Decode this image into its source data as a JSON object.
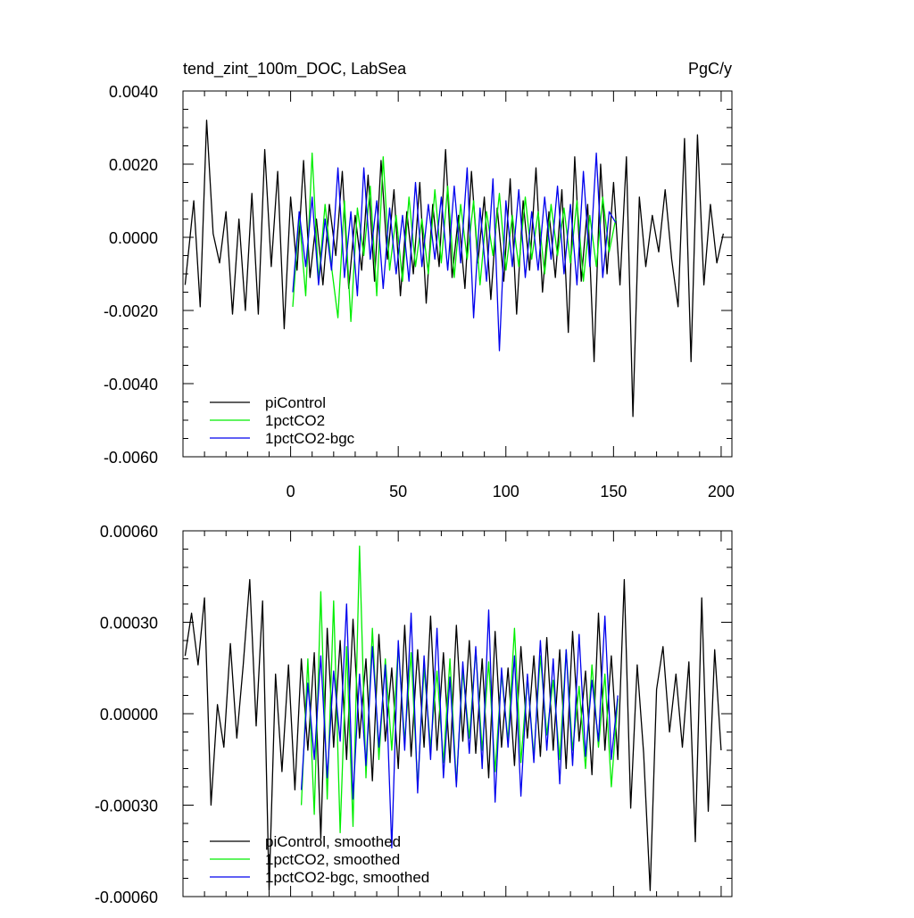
{
  "chart_data": [
    {
      "type": "line",
      "title": "tend_zint_100m_DOC, LabSea",
      "units": "PgC/y",
      "ylim": [
        -0.006,
        0.004
      ],
      "xlim": [
        -50,
        205
      ],
      "yticks": [
        -0.006,
        -0.004,
        -0.002,
        0.0,
        0.002,
        0.004
      ],
      "ytick_labels": [
        "-0.0060",
        "-0.0040",
        "-0.0020",
        "0.0000",
        "0.0020",
        "0.0040"
      ],
      "xticks": [
        0,
        50,
        100,
        150,
        200
      ],
      "xtick_labels": [
        "0",
        "50",
        "100",
        "150",
        "200"
      ],
      "legend_position": "bottom-left",
      "series": [
        {
          "name": "piControl",
          "color": "#000000",
          "x": [
            -49,
            -45,
            -42,
            -39,
            -36,
            -33,
            -30,
            -27,
            -24,
            -21,
            -18,
            -15,
            -12,
            -9,
            -6,
            -3,
            0,
            3,
            6,
            9,
            12,
            15,
            18,
            21,
            24,
            27,
            30,
            33,
            36,
            39,
            42,
            45,
            48,
            51,
            54,
            57,
            60,
            63,
            66,
            69,
            72,
            75,
            78,
            81,
            84,
            87,
            90,
            93,
            96,
            99,
            102,
            105,
            108,
            111,
            114,
            117,
            120,
            123,
            126,
            129,
            132,
            135,
            138,
            141,
            144,
            147,
            150,
            153,
            156,
            159,
            162,
            165,
            168,
            171,
            174,
            177,
            180,
            183,
            186,
            189,
            192,
            195,
            198,
            201
          ],
          "values": [
            -0.0013,
            0.001,
            -0.0019,
            0.0032,
            0.0001,
            -0.0007,
            0.0007,
            -0.0021,
            0.0005,
            -0.002,
            0.0012,
            -0.0021,
            0.0024,
            -0.0008,
            0.0018,
            -0.0025,
            0.0011,
            -0.0009,
            0.0021,
            -0.0011,
            0.0005,
            -0.0013,
            0.0009,
            -0.0005,
            0.0018,
            -0.0014,
            0.0006,
            -0.0009,
            0.0017,
            -0.0012,
            0.0021,
            -0.0006,
            0.0013,
            -0.0016,
            0.0007,
            -0.001,
            0.0015,
            -0.0018,
            0.0009,
            -0.0008,
            0.0024,
            -0.0011,
            0.0006,
            -0.0014,
            0.0018,
            -0.0007,
            0.0011,
            -0.0017,
            0.0008,
            -0.0012,
            0.0016,
            -0.0021,
            0.001,
            -0.0009,
            0.0019,
            -0.0015,
            0.0007,
            -0.0011,
            0.0013,
            -0.0026,
            0.0022,
            -0.0012,
            0.0009,
            -0.0034,
            0.002,
            -0.001,
            0.0015,
            -0.0013,
            0.0022,
            -0.0049,
            0.0011,
            -0.0008,
            0.0006,
            -0.0004,
            0.0013,
            -0.0006,
            -0.0019,
            0.0027,
            -0.0034,
            0.0028,
            -0.0013,
            0.0009,
            -0.0007,
            0.0001
          ]
        },
        {
          "name": "1pctCO2",
          "color": "#00ee00",
          "x": [
            1,
            4,
            7,
            10,
            13,
            16,
            19,
            22,
            25,
            28,
            31,
            34,
            37,
            40,
            43,
            46,
            49,
            52,
            55,
            58,
            61,
            64,
            67,
            70,
            73,
            76,
            79,
            82,
            85,
            88,
            91,
            94,
            97,
            100,
            103,
            106,
            109,
            112,
            115,
            118,
            121,
            124,
            127,
            130,
            133,
            136,
            139,
            142,
            145,
            148,
            151
          ],
          "values": [
            -0.0019,
            0.0006,
            -0.0016,
            0.0023,
            -0.0012,
            0.0009,
            -0.0008,
            -0.0022,
            0.001,
            -0.0023,
            0.0008,
            -0.0005,
            0.0014,
            -0.0016,
            0.0022,
            -0.0009,
            0.0006,
            -0.0012,
            0.0011,
            -0.0008,
            0.0005,
            -0.001,
            0.0013,
            -0.0007,
            0.0014,
            -0.0011,
            0.0009,
            -0.0006,
            0.001,
            -0.0013,
            0.0007,
            -0.0005,
            0.0012,
            -0.0009,
            0.0006,
            -0.0008,
            0.0011,
            -0.0006,
            0.0007,
            -0.001,
            0.0009,
            -0.0005,
            0.0008,
            -0.0007,
            0.001,
            -0.0012,
            0.0006,
            -0.0008,
            0.0011,
            -0.0004,
            0.0005
          ]
        },
        {
          "name": "1pctCO2-bgc",
          "color": "#0000ee",
          "x": [
            1,
            4,
            7,
            10,
            13,
            16,
            19,
            22,
            25,
            28,
            31,
            34,
            37,
            40,
            43,
            46,
            49,
            52,
            55,
            58,
            61,
            64,
            67,
            70,
            73,
            76,
            79,
            82,
            85,
            88,
            91,
            94,
            97,
            100,
            103,
            106,
            109,
            112,
            115,
            118,
            121,
            124,
            127,
            130,
            133,
            136,
            139,
            142,
            145,
            148,
            151
          ],
          "values": [
            -0.0015,
            0.0007,
            -0.0008,
            0.0011,
            -0.0013,
            0.0005,
            -0.0009,
            0.0019,
            -0.0011,
            0.0007,
            -0.0016,
            0.0019,
            -0.0006,
            0.001,
            -0.0014,
            0.0008,
            -0.001,
            0.0006,
            -0.0012,
            0.0015,
            -0.0008,
            0.0009,
            -0.0006,
            0.0011,
            -0.0009,
            0.0014,
            -0.0007,
            0.0019,
            -0.0022,
            0.0008,
            -0.0012,
            0.0016,
            -0.0031,
            0.001,
            -0.0008,
            0.0013,
            -0.0011,
            0.0007,
            -0.0009,
            0.0011,
            -0.0006,
            0.0014,
            -0.001,
            0.0009,
            -0.0013,
            0.0018,
            -0.0008,
            0.0023,
            -0.0011,
            0.0007,
            0.0004
          ]
        }
      ]
    },
    {
      "type": "line",
      "title": "",
      "ylim": [
        -0.0006,
        0.0006
      ],
      "xlim": [
        -50,
        205
      ],
      "yticks": [
        -0.0006,
        -0.0003,
        0.0,
        0.0003,
        0.0006
      ],
      "ytick_labels": [
        "-0.00060",
        "-0.00030",
        "0.00000",
        "0.00030",
        "0.00060"
      ],
      "xticks": [
        0,
        50,
        100,
        150,
        200
      ],
      "legend_position": "bottom-left",
      "series": [
        {
          "name": "piControl, smoothed",
          "color": "#000000",
          "x": [
            -49,
            -46,
            -43,
            -40,
            -37,
            -34,
            -31,
            -28,
            -25,
            -22,
            -19,
            -16,
            -13,
            -10,
            -7,
            -4,
            -1,
            2,
            5,
            8,
            11,
            14,
            17,
            20,
            23,
            26,
            29,
            32,
            35,
            38,
            41,
            44,
            47,
            50,
            53,
            56,
            59,
            62,
            65,
            68,
            71,
            74,
            77,
            80,
            83,
            86,
            89,
            92,
            95,
            98,
            101,
            104,
            107,
            110,
            113,
            116,
            119,
            122,
            125,
            128,
            131,
            134,
            137,
            140,
            143,
            146,
            149,
            152,
            155,
            158,
            161,
            164,
            167,
            170,
            173,
            176,
            179,
            182,
            185,
            188,
            191,
            194,
            197,
            200
          ],
          "values": [
            0.00019,
            0.00033,
            0.00016,
            0.00038,
            -0.0003,
            3e-05,
            -0.00011,
            0.00023,
            -8e-05,
            0.00016,
            0.00044,
            -4e-05,
            0.00037,
            -0.00058,
            0.00013,
            -0.00019,
            0.00016,
            -0.00025,
            0.00018,
            -0.00012,
            0.0002,
            -0.00041,
            0.00028,
            -0.00011,
            0.00024,
            -0.00015,
            0.00031,
            -8e-05,
            0.00018,
            -0.00022,
            0.00026,
            -9e-05,
            0.00015,
            -0.00018,
            0.00029,
            -0.00014,
            0.00021,
            -0.00011,
            0.00032,
            -0.00012,
            0.0002,
            -0.00016,
            0.00029,
            -9e-05,
            0.00024,
            -0.00013,
            0.00018,
            -0.00021,
            0.00027,
            -0.00011,
            0.00015,
            -0.00017,
            0.00022,
            -8e-05,
            0.00019,
            -0.00014,
            0.00025,
            -0.00012,
            0.00021,
            -0.00018,
            0.00027,
            -9e-05,
            0.00014,
            -0.0002,
            0.00033,
            -0.00012,
            0.00019,
            -0.00015,
            0.00044,
            -0.00031,
            0.00016,
            -0.00013,
            -0.00058,
            8e-05,
            0.00022,
            -6e-05,
            0.00013,
            -0.00011,
            0.00017,
            -0.00042,
            0.00038,
            -0.00032,
            0.00021,
            -0.00012
          ]
        },
        {
          "name": "1pctCO2, smoothed",
          "color": "#00ee00",
          "x": [
            5,
            8,
            11,
            14,
            17,
            20,
            23,
            26,
            29,
            32,
            35,
            38,
            41,
            44,
            47,
            50,
            53,
            56,
            59,
            62,
            65,
            68,
            71,
            74,
            77,
            80,
            83,
            86,
            89,
            92,
            95,
            98,
            101,
            104,
            107,
            110,
            113,
            116,
            119,
            122,
            125,
            128,
            131,
            134,
            137,
            140,
            143,
            146,
            149,
            152
          ],
          "values": [
            -0.0003,
            0.00018,
            -0.00033,
            0.0004,
            -0.00028,
            0.00037,
            -0.00039,
            0.00022,
            -0.00037,
            0.00055,
            -0.00021,
            0.00028,
            -0.00015,
            0.00018,
            -0.00012,
            0.00022,
            -9e-05,
            0.0002,
            -0.00024,
            0.00015,
            -0.00011,
            0.00014,
            -0.00016,
            0.00018,
            -0.00023,
            0.00014,
            -8e-05,
            0.00021,
            -0.00012,
            0.00017,
            -0.00019,
            0.00013,
            -9e-05,
            0.00028,
            -0.00016,
            0.00012,
            -0.00014,
            0.00019,
            -7e-05,
            0.00011,
            -0.00015,
            0.00021,
            -0.00012,
            9e-05,
            -0.00018,
            0.00016,
            -0.00011,
            0.00013,
            -0.00024,
            5e-05
          ]
        },
        {
          "name": "1pctCO2-bgc, smoothed",
          "color": "#0000ee",
          "x": [
            5,
            8,
            11,
            14,
            17,
            20,
            23,
            26,
            29,
            32,
            35,
            38,
            41,
            44,
            47,
            50,
            53,
            56,
            59,
            62,
            65,
            68,
            71,
            74,
            77,
            80,
            83,
            86,
            89,
            92,
            95,
            98,
            101,
            104,
            107,
            110,
            113,
            116,
            119,
            122,
            125,
            128,
            131,
            134,
            137,
            140,
            143,
            146,
            149,
            152
          ],
          "values": [
            -0.00025,
            0.0001,
            -0.00015,
            0.00019,
            -0.00021,
            0.00014,
            -9e-05,
            0.00036,
            -0.00028,
            0.00013,
            -0.00017,
            0.00022,
            -0.00011,
            0.00016,
            -0.00044,
            0.00024,
            -0.00012,
            0.00033,
            -0.00026,
            0.00019,
            -0.00015,
            0.00028,
            -0.00021,
            0.00012,
            -0.00024,
            0.00017,
            -0.00013,
            0.00022,
            -0.00018,
            0.00034,
            -0.00029,
            0.00015,
            -0.00011,
            0.00019,
            -0.00027,
            0.00013,
            -0.00016,
            0.00024,
            -0.00012,
            0.00018,
            -0.00023,
            0.00021,
            -0.00017,
            0.00026,
            -0.00014,
            0.00011,
            -9e-05,
            0.00032,
            -0.00015,
            6e-05
          ]
        }
      ]
    }
  ]
}
